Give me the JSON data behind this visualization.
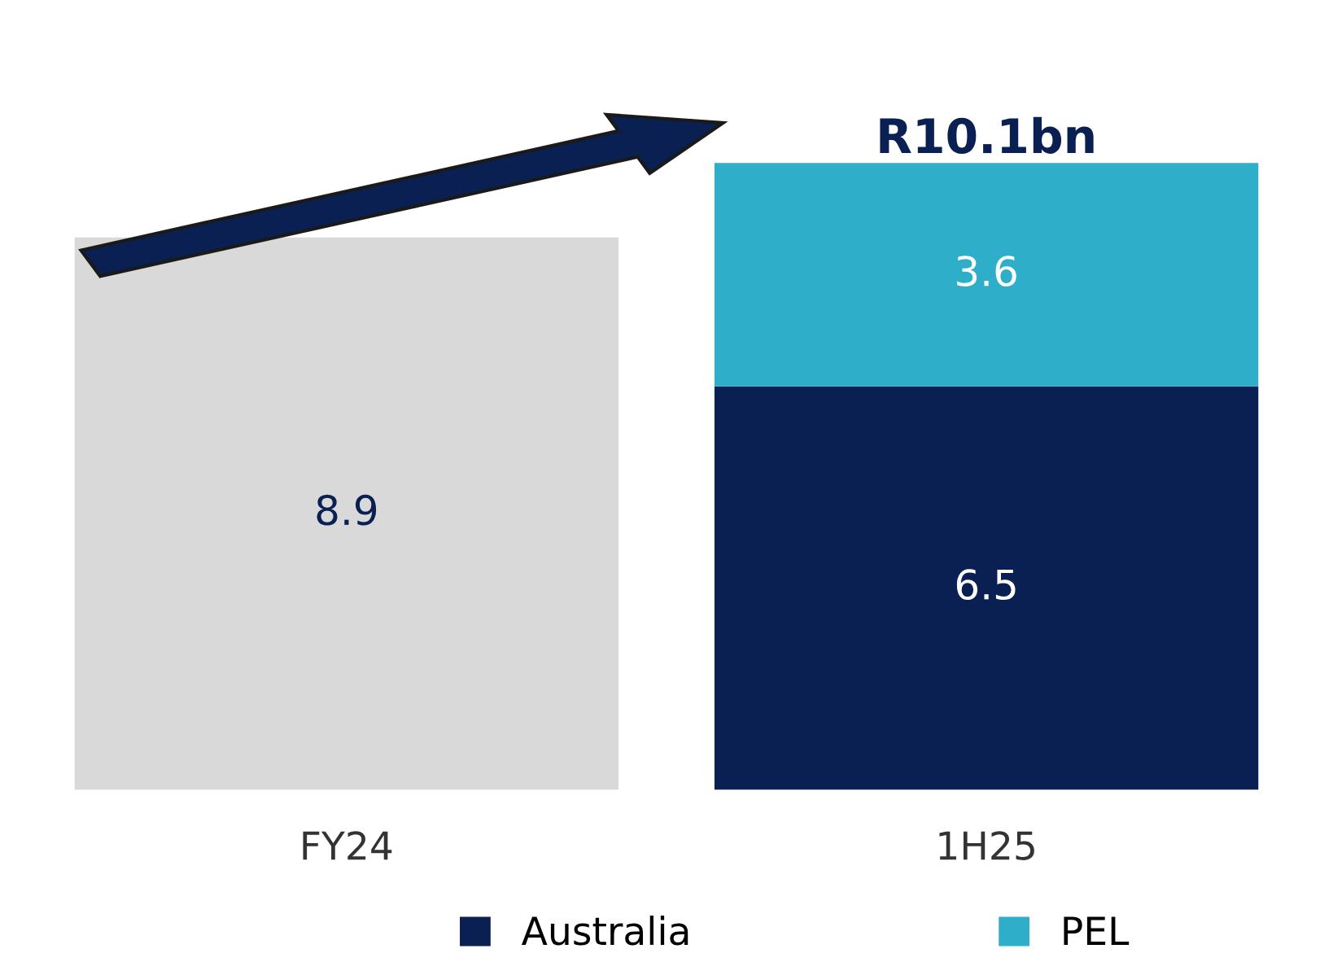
{
  "chart_data": {
    "type": "bar",
    "stacked": true,
    "categories": [
      "FY24",
      "1H25"
    ],
    "series": [
      {
        "color": "#d9d9d9",
        "values": [
          8.9,
          null
        ]
      },
      {
        "name": "Australia",
        "color": "#0a1f52",
        "values": [
          null,
          6.5
        ]
      },
      {
        "name": "PEL",
        "color": "#2eaec9",
        "values": [
          null,
          3.6
        ]
      }
    ],
    "data_labels": true,
    "totals": [
      null,
      "R10.1bn"
    ],
    "legend": "bottom",
    "grid": false
  }
}
